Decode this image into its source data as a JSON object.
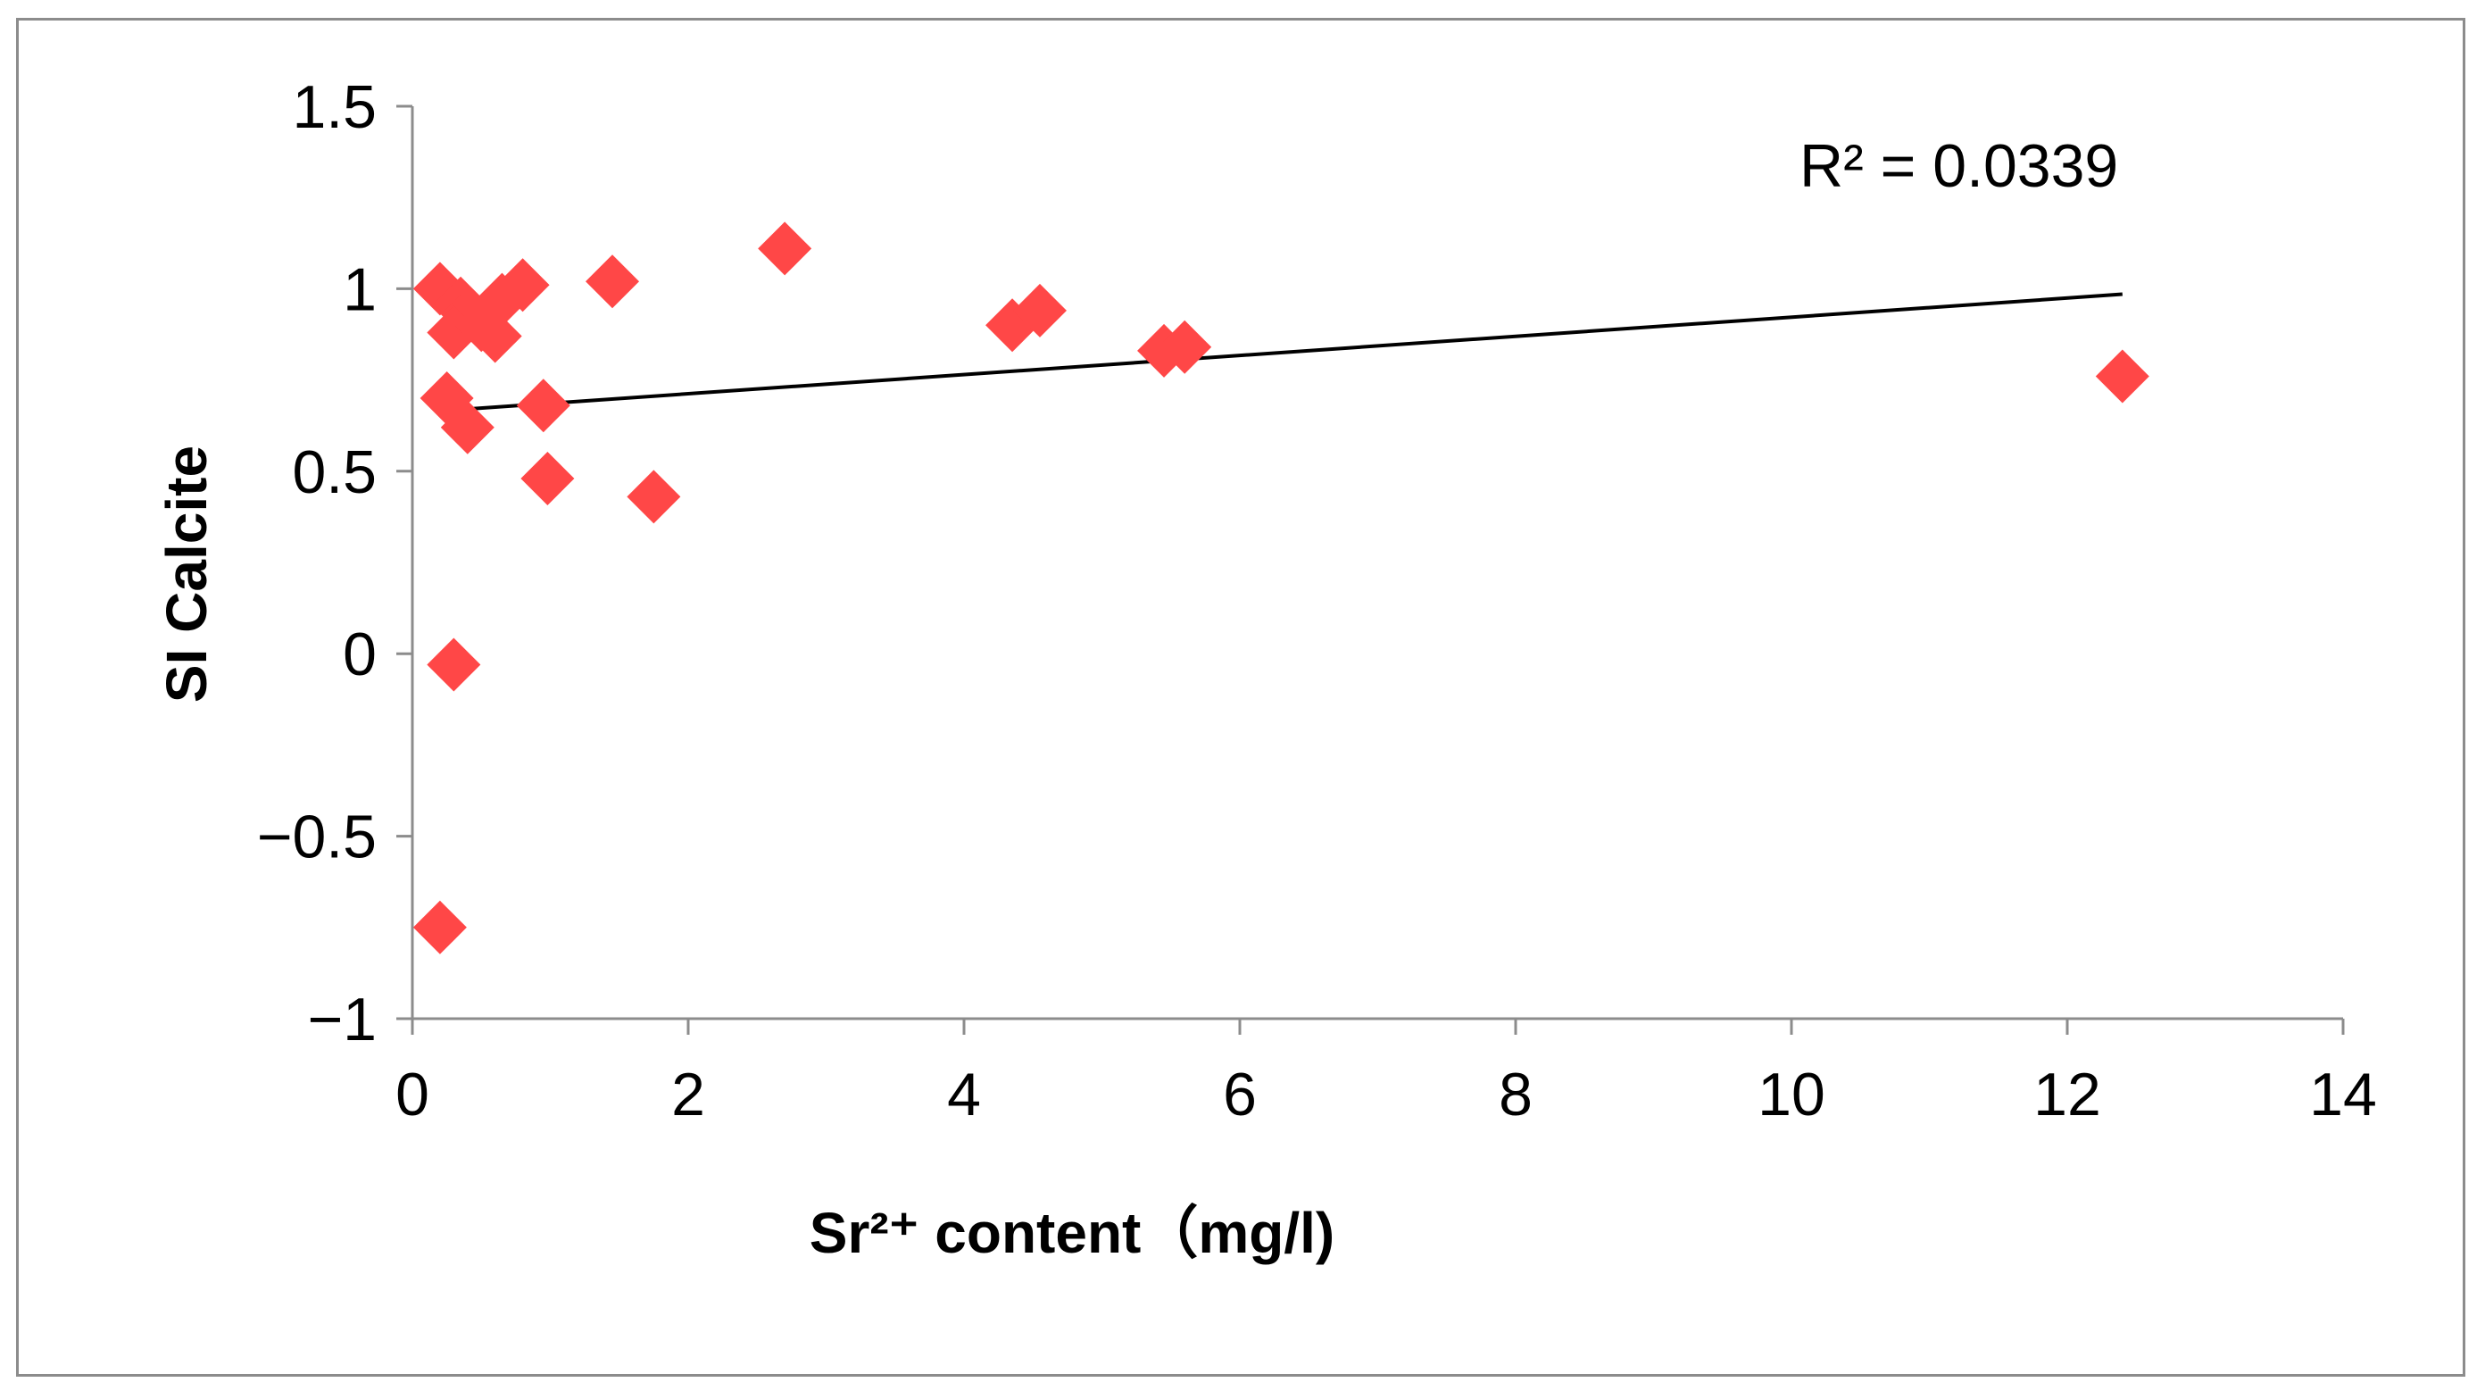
{
  "chart_data": {
    "type": "scatter",
    "title": "",
    "xlabel": "Sr²⁺ content（mg/l)",
    "ylabel": "SI Calcite",
    "xlim": [
      0,
      14
    ],
    "ylim": [
      -1,
      1.5
    ],
    "x_ticks": [
      0,
      2,
      4,
      6,
      8,
      10,
      12,
      14
    ],
    "y_ticks": [
      1.5,
      1,
      0.5,
      0,
      -0.5,
      -1
    ],
    "x_tick_labels": [
      "0",
      "2",
      "4",
      "6",
      "8",
      "10",
      "12",
      "14"
    ],
    "y_tick_labels": [
      "1.5",
      "1",
      "0.5",
      "0",
      "−0.5",
      "−1"
    ],
    "grid": false,
    "legend": "none",
    "marker": "diamond",
    "marker_color": "#ff4747",
    "trendline_color": "#000000",
    "series": [
      {
        "points": [
          {
            "x": 0.2,
            "y": 1.0
          },
          {
            "x": 0.35,
            "y": 0.96
          },
          {
            "x": 0.4,
            "y": 0.93
          },
          {
            "x": 0.3,
            "y": 0.88
          },
          {
            "x": 0.5,
            "y": 0.9
          },
          {
            "x": 0.65,
            "y": 0.97
          },
          {
            "x": 0.6,
            "y": 0.87
          },
          {
            "x": 0.8,
            "y": 1.01
          },
          {
            "x": 1.45,
            "y": 1.02
          },
          {
            "x": 2.7,
            "y": 1.11
          },
          {
            "x": 4.35,
            "y": 0.9
          },
          {
            "x": 4.55,
            "y": 0.94
          },
          {
            "x": 5.45,
            "y": 0.83
          },
          {
            "x": 5.6,
            "y": 0.84
          },
          {
            "x": 12.4,
            "y": 0.76
          },
          {
            "x": 0.25,
            "y": 0.7
          },
          {
            "x": 0.4,
            "y": 0.62
          },
          {
            "x": 0.95,
            "y": 0.68
          },
          {
            "x": 0.98,
            "y": 0.48
          },
          {
            "x": 1.75,
            "y": 0.43
          },
          {
            "x": 0.3,
            "y": -0.03
          },
          {
            "x": 0.2,
            "y": -0.75
          }
        ]
      }
    ],
    "trendline": {
      "x": [
        0.2,
        12.4
      ],
      "y": [
        0.665,
        0.985
      ]
    },
    "annotation": "R² = 0.0339"
  }
}
